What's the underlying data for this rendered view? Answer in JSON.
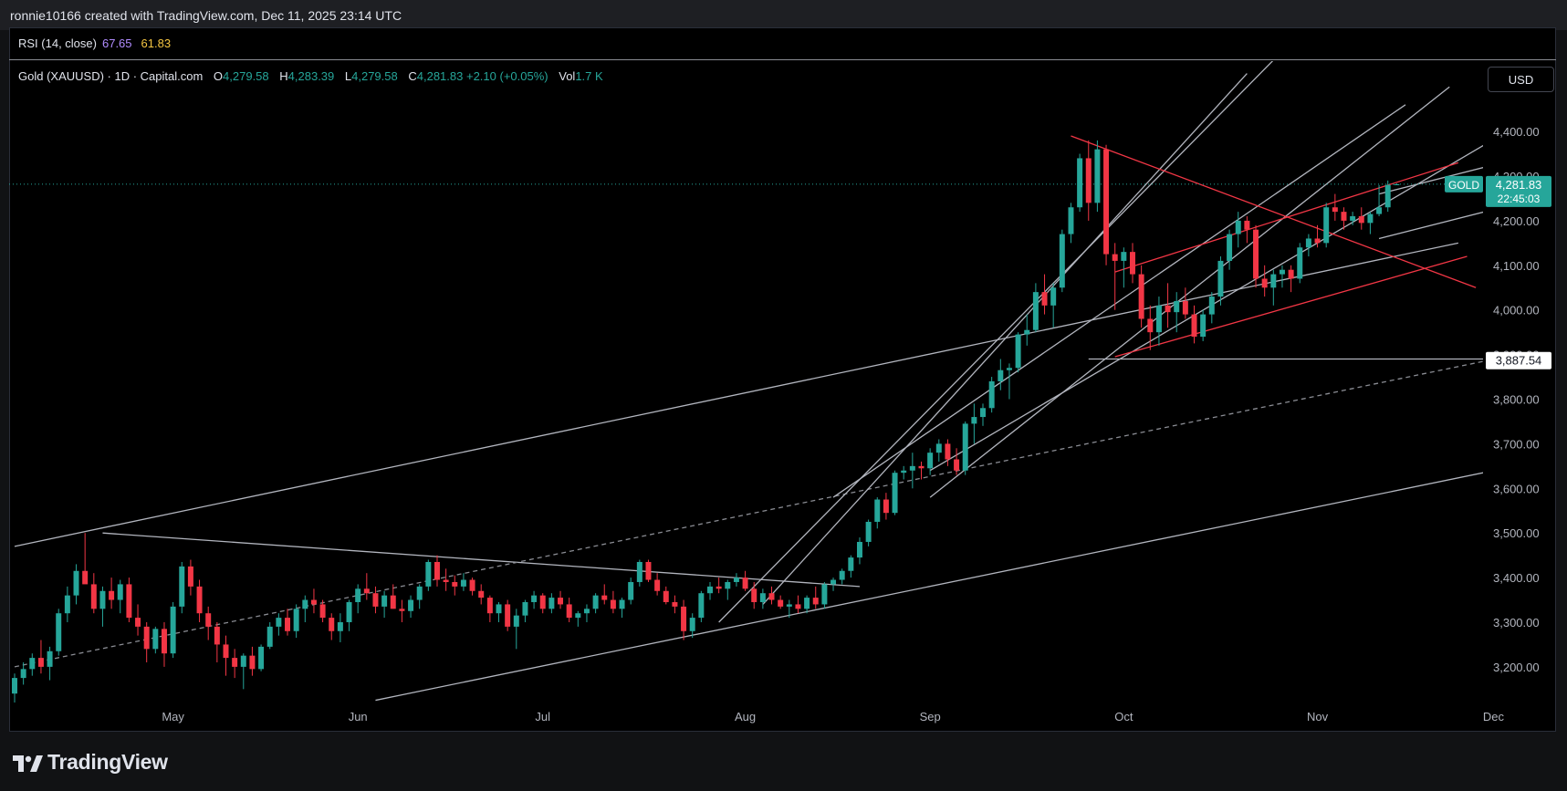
{
  "header": {
    "attribution": "ronnie10166 created with TradingView.com, Dec 11, 2025 23:14 UTC"
  },
  "rsi": {
    "label": "RSI (14, close)",
    "value1": "67.65",
    "value2": "61.83"
  },
  "symbol": {
    "name": "Gold (XAUUSD) · 1D · Capital.com",
    "o_label": "O",
    "o": "4,279.58",
    "h_label": "H",
    "h": "4,283.39",
    "l_label": "L",
    "l": "4,279.58",
    "c_label": "C",
    "c": "4,281.83",
    "change": "+2.10 (+0.05%)",
    "vol_label": "Vol",
    "vol": "1.7 K"
  },
  "currency_button": "USD",
  "price_tags": {
    "ticker": "GOLD",
    "last": "4,281.83",
    "countdown": "22:45:03",
    "level": "3,887.54"
  },
  "brand": "TradingView",
  "colors": {
    "up": "#26a69a",
    "down": "#f23645",
    "line": "#b2b5be",
    "channel": "#f23645",
    "bg": "#000000"
  },
  "chart_data": {
    "type": "candlestick",
    "title": "Gold (XAUUSD) · 1D · Capital.com",
    "ylim": [
      3120,
      4480
    ],
    "y_ticks": [
      3200,
      3300,
      3400,
      3500,
      3600,
      3700,
      3800,
      3900,
      4000,
      4100,
      4200,
      4300,
      4400
    ],
    "y_tick_labels": [
      "3,200.00",
      "3,300.00",
      "3,400.00",
      "3,500.00",
      "3,600.00",
      "3,700.00",
      "3,800.00",
      "3,900.00",
      "4,000.00",
      "4,100.00",
      "4,200.00",
      "4,300.00",
      "4,400.00"
    ],
    "x_ticks": [
      "May",
      "Jun",
      "Jul",
      "Aug",
      "Sep",
      "Oct",
      "Nov",
      "Dec"
    ],
    "x_tick_positions": [
      18,
      39,
      60,
      83,
      104,
      126,
      148,
      168
    ],
    "candles": [
      [
        3140,
        3185,
        3120,
        3175
      ],
      [
        3175,
        3210,
        3160,
        3195
      ],
      [
        3195,
        3230,
        3180,
        3220
      ],
      [
        3220,
        3260,
        3185,
        3200
      ],
      [
        3200,
        3245,
        3170,
        3235
      ],
      [
        3235,
        3330,
        3225,
        3320
      ],
      [
        3320,
        3380,
        3300,
        3360
      ],
      [
        3360,
        3430,
        3340,
        3415
      ],
      [
        3415,
        3500,
        3390,
        3385
      ],
      [
        3385,
        3410,
        3320,
        3330
      ],
      [
        3330,
        3380,
        3290,
        3370
      ],
      [
        3370,
        3400,
        3330,
        3350
      ],
      [
        3350,
        3395,
        3320,
        3385
      ],
      [
        3385,
        3400,
        3300,
        3310
      ],
      [
        3310,
        3340,
        3270,
        3290
      ],
      [
        3290,
        3300,
        3210,
        3240
      ],
      [
        3240,
        3290,
        3230,
        3285
      ],
      [
        3285,
        3300,
        3200,
        3230
      ],
      [
        3230,
        3345,
        3220,
        3335
      ],
      [
        3335,
        3435,
        3320,
        3425
      ],
      [
        3425,
        3440,
        3360,
        3380
      ],
      [
        3380,
        3395,
        3300,
        3320
      ],
      [
        3320,
        3335,
        3260,
        3290
      ],
      [
        3290,
        3300,
        3210,
        3250
      ],
      [
        3250,
        3270,
        3180,
        3220
      ],
      [
        3220,
        3240,
        3175,
        3200
      ],
      [
        3200,
        3230,
        3150,
        3225
      ],
      [
        3225,
        3245,
        3180,
        3195
      ],
      [
        3195,
        3250,
        3190,
        3245
      ],
      [
        3245,
        3300,
        3240,
        3290
      ],
      [
        3290,
        3320,
        3270,
        3310
      ],
      [
        3310,
        3330,
        3270,
        3280
      ],
      [
        3280,
        3340,
        3265,
        3330
      ],
      [
        3330,
        3360,
        3300,
        3350
      ],
      [
        3350,
        3375,
        3320,
        3340
      ],
      [
        3340,
        3350,
        3300,
        3310
      ],
      [
        3310,
        3320,
        3260,
        3280
      ],
      [
        3280,
        3320,
        3255,
        3300
      ],
      [
        3300,
        3350,
        3280,
        3345
      ],
      [
        3345,
        3385,
        3320,
        3375
      ],
      [
        3375,
        3410,
        3350,
        3365
      ],
      [
        3365,
        3380,
        3320,
        3335
      ],
      [
        3335,
        3370,
        3310,
        3360
      ],
      [
        3360,
        3385,
        3330,
        3330
      ],
      [
        3330,
        3350,
        3300,
        3325
      ],
      [
        3325,
        3360,
        3310,
        3350
      ],
      [
        3350,
        3385,
        3330,
        3380
      ],
      [
        3380,
        3440,
        3370,
        3435
      ],
      [
        3435,
        3450,
        3380,
        3395
      ],
      [
        3395,
        3420,
        3370,
        3390
      ],
      [
        3390,
        3405,
        3360,
        3380
      ],
      [
        3380,
        3410,
        3370,
        3395
      ],
      [
        3395,
        3400,
        3360,
        3370
      ],
      [
        3370,
        3385,
        3340,
        3355
      ],
      [
        3355,
        3360,
        3300,
        3320
      ],
      [
        3320,
        3345,
        3300,
        3340
      ],
      [
        3340,
        3350,
        3280,
        3290
      ],
      [
        3290,
        3330,
        3240,
        3315
      ],
      [
        3315,
        3350,
        3300,
        3345
      ],
      [
        3345,
        3370,
        3330,
        3360
      ],
      [
        3360,
        3365,
        3320,
        3330
      ],
      [
        3330,
        3365,
        3320,
        3355
      ],
      [
        3355,
        3370,
        3330,
        3340
      ],
      [
        3340,
        3355,
        3300,
        3310
      ],
      [
        3310,
        3325,
        3290,
        3320
      ],
      [
        3320,
        3340,
        3300,
        3330
      ],
      [
        3330,
        3365,
        3320,
        3360
      ],
      [
        3360,
        3385,
        3340,
        3350
      ],
      [
        3350,
        3370,
        3320,
        3330
      ],
      [
        3330,
        3355,
        3310,
        3350
      ],
      [
        3350,
        3400,
        3340,
        3390
      ],
      [
        3390,
        3440,
        3380,
        3435
      ],
      [
        3435,
        3440,
        3390,
        3395
      ],
      [
        3395,
        3410,
        3360,
        3370
      ],
      [
        3370,
        3380,
        3340,
        3345
      ],
      [
        3345,
        3360,
        3320,
        3335
      ],
      [
        3335,
        3350,
        3260,
        3280
      ],
      [
        3280,
        3320,
        3265,
        3310
      ],
      [
        3310,
        3370,
        3300,
        3365
      ],
      [
        3365,
        3390,
        3350,
        3380
      ],
      [
        3380,
        3400,
        3365,
        3375
      ],
      [
        3375,
        3395,
        3350,
        3390
      ],
      [
        3390,
        3410,
        3380,
        3400
      ],
      [
        3400,
        3415,
        3370,
        3375
      ],
      [
        3375,
        3390,
        3330,
        3345
      ],
      [
        3345,
        3375,
        3330,
        3365
      ],
      [
        3365,
        3380,
        3340,
        3350
      ],
      [
        3350,
        3360,
        3330,
        3335
      ],
      [
        3335,
        3350,
        3310,
        3340
      ],
      [
        3340,
        3360,
        3320,
        3330
      ],
      [
        3330,
        3360,
        3320,
        3355
      ],
      [
        3355,
        3380,
        3330,
        3340
      ],
      [
        3340,
        3390,
        3330,
        3385
      ],
      [
        3385,
        3400,
        3370,
        3395
      ],
      [
        3395,
        3420,
        3385,
        3415
      ],
      [
        3415,
        3450,
        3400,
        3445
      ],
      [
        3445,
        3490,
        3430,
        3480
      ],
      [
        3480,
        3530,
        3470,
        3525
      ],
      [
        3525,
        3580,
        3510,
        3575
      ],
      [
        3575,
        3590,
        3530,
        3545
      ],
      [
        3545,
        3640,
        3540,
        3635
      ],
      [
        3635,
        3650,
        3620,
        3640
      ],
      [
        3640,
        3680,
        3600,
        3650
      ],
      [
        3650,
        3660,
        3620,
        3645
      ],
      [
        3645,
        3690,
        3630,
        3680
      ],
      [
        3680,
        3710,
        3660,
        3700
      ],
      [
        3700,
        3710,
        3650,
        3665
      ],
      [
        3665,
        3690,
        3630,
        3640
      ],
      [
        3640,
        3750,
        3630,
        3745
      ],
      [
        3745,
        3790,
        3700,
        3760
      ],
      [
        3760,
        3790,
        3740,
        3780
      ],
      [
        3780,
        3850,
        3770,
        3840
      ],
      [
        3840,
        3890,
        3820,
        3865
      ],
      [
        3865,
        3880,
        3800,
        3870
      ],
      [
        3870,
        3950,
        3860,
        3945
      ],
      [
        3945,
        3990,
        3920,
        3955
      ],
      [
        3955,
        4060,
        3950,
        4040
      ],
      [
        4040,
        4080,
        3990,
        4010
      ],
      [
        4010,
        4060,
        3960,
        4050
      ],
      [
        4050,
        4180,
        4040,
        4170
      ],
      [
        4170,
        4240,
        4150,
        4230
      ],
      [
        4230,
        4350,
        4220,
        4340
      ],
      [
        4340,
        4380,
        4200,
        4240
      ],
      [
        4240,
        4380,
        4220,
        4360
      ],
      [
        4360,
        4370,
        4100,
        4125
      ],
      [
        4125,
        4150,
        4000,
        4110
      ],
      [
        4110,
        4140,
        4050,
        4130
      ],
      [
        4130,
        4150,
        4060,
        4080
      ],
      [
        4080,
        4100,
        3960,
        3980
      ],
      [
        3980,
        4010,
        3910,
        3950
      ],
      [
        3950,
        4030,
        3920,
        4010
      ],
      [
        4010,
        4060,
        3960,
        3995
      ],
      [
        3995,
        4040,
        3950,
        4020
      ],
      [
        4020,
        4050,
        3980,
        3990
      ],
      [
        3990,
        4010,
        3925,
        3940
      ],
      [
        3940,
        4000,
        3930,
        3990
      ],
      [
        3990,
        4040,
        3970,
        4030
      ],
      [
        4030,
        4120,
        4010,
        4110
      ],
      [
        4110,
        4180,
        4090,
        4170
      ],
      [
        4170,
        4220,
        4140,
        4200
      ],
      [
        4200,
        4210,
        4150,
        4180
      ],
      [
        4180,
        4190,
        4050,
        4070
      ],
      [
        4070,
        4100,
        4030,
        4050
      ],
      [
        4050,
        4090,
        4010,
        4080
      ],
      [
        4080,
        4100,
        4050,
        4090
      ],
      [
        4090,
        4100,
        4040,
        4070
      ],
      [
        4070,
        4150,
        4060,
        4140
      ],
      [
        4140,
        4170,
        4120,
        4160
      ],
      [
        4160,
        4190,
        4140,
        4150
      ],
      [
        4150,
        4240,
        4140,
        4230
      ],
      [
        4230,
        4260,
        4200,
        4220
      ],
      [
        4220,
        4230,
        4180,
        4200
      ],
      [
        4200,
        4220,
        4190,
        4210
      ],
      [
        4210,
        4230,
        4180,
        4195
      ],
      [
        4195,
        4220,
        4170,
        4215
      ],
      [
        4215,
        4280,
        4210,
        4230
      ],
      [
        4230,
        4290,
        4220,
        4280
      ],
      [
        4279.58,
        4283.39,
        4279.58,
        4281.83
      ]
    ],
    "lines": [
      {
        "kind": "trend",
        "color": "gray",
        "pts": [
          [
            0,
            3470
          ],
          [
            164,
            4150
          ]
        ]
      },
      {
        "kind": "trend",
        "color": "gray",
        "pts": [
          [
            41,
            3125
          ],
          [
            173,
            3660
          ]
        ]
      },
      {
        "kind": "trend",
        "color": "gray",
        "pts": [
          [
            10,
            3500
          ],
          [
            96,
            3380
          ]
        ]
      },
      {
        "kind": "dash",
        "color": "gray",
        "pts": [
          [
            0,
            3200
          ],
          [
            173,
            3910
          ]
        ]
      },
      {
        "kind": "trend",
        "color": "gray",
        "pts": [
          [
            80,
            3300
          ],
          [
            143,
            4560
          ]
        ]
      },
      {
        "kind": "trend",
        "color": "gray",
        "pts": [
          [
            85,
            3340
          ],
          [
            140,
            4530
          ]
        ]
      },
      {
        "kind": "trend",
        "color": "gray",
        "pts": [
          [
            93,
            3580
          ],
          [
            158,
            4460
          ]
        ]
      },
      {
        "kind": "trend",
        "color": "gray",
        "pts": [
          [
            104,
            3580
          ],
          [
            163,
            4500
          ]
        ]
      },
      {
        "kind": "trend",
        "color": "gray",
        "pts": [
          [
            104,
            3640
          ],
          [
            173,
            4440
          ]
        ]
      },
      {
        "kind": "trend",
        "color": "gray",
        "pts": [
          [
            122,
            3890
          ],
          [
            173,
            3890
          ]
        ]
      },
      {
        "kind": "trend",
        "color": "gray",
        "pts": [
          [
            155,
            4260
          ],
          [
            173,
            4350
          ]
        ]
      },
      {
        "kind": "trend",
        "color": "gray",
        "pts": [
          [
            155,
            4160
          ],
          [
            173,
            4250
          ]
        ]
      },
      {
        "kind": "trend",
        "color": "red",
        "pts": [
          [
            120,
            4390
          ],
          [
            166,
            4050
          ]
        ]
      },
      {
        "kind": "trend",
        "color": "red",
        "pts": [
          [
            125,
            3895
          ],
          [
            165,
            4120
          ]
        ]
      },
      {
        "kind": "trend",
        "color": "red",
        "pts": [
          [
            125,
            4085
          ],
          [
            164,
            4330
          ]
        ]
      }
    ]
  }
}
